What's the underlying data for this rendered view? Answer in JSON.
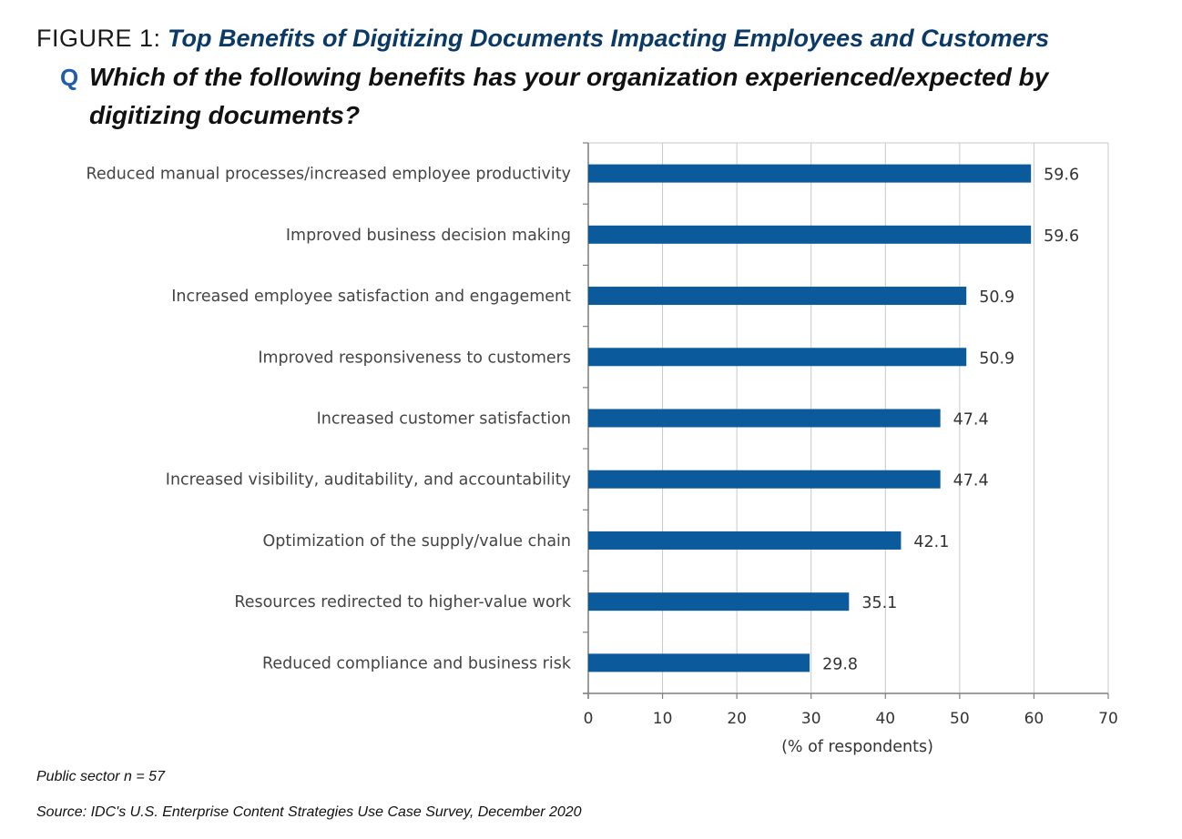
{
  "figure": {
    "prefix": "FIGURE 1:",
    "title": "Top Benefits of Digitizing Documents Impacting Employees and Customers",
    "q_marker": "Q",
    "question": "Which of the following benefits has your organization experienced/expected by digitizing documents?"
  },
  "chart_data": {
    "type": "bar",
    "orientation": "horizontal",
    "categories": [
      "Reduced manual processes/increased employee productivity",
      "Improved business decision making",
      "Increased employee satisfaction and engagement",
      "Improved responsiveness to customers",
      "Increased customer satisfaction",
      "Increased visibility, auditability, and accountability",
      "Optimization of the supply/value chain",
      "Resources redirected to higher-value work",
      "Reduced compliance and business risk"
    ],
    "values": [
      59.6,
      59.6,
      50.9,
      50.9,
      47.4,
      47.4,
      42.1,
      35.1,
      29.8
    ],
    "value_labels": [
      "59.6",
      "59.6",
      "50.9",
      "50.9",
      "47.4",
      "47.4",
      "42.1",
      "35.1",
      "29.8"
    ],
    "xlabel": "(% of respondents)",
    "xlim": [
      0,
      70
    ],
    "xticks": [
      0,
      10,
      20,
      30,
      40,
      50,
      60,
      70
    ],
    "grid": "vertical",
    "bar_color": "#0b5a9c",
    "grid_color": "#c8c8c8"
  },
  "footnotes": {
    "sample": "Public sector n = 57",
    "source": "Source: IDC's U.S. Enterprise Content Strategies Use Case Survey, December 2020"
  }
}
